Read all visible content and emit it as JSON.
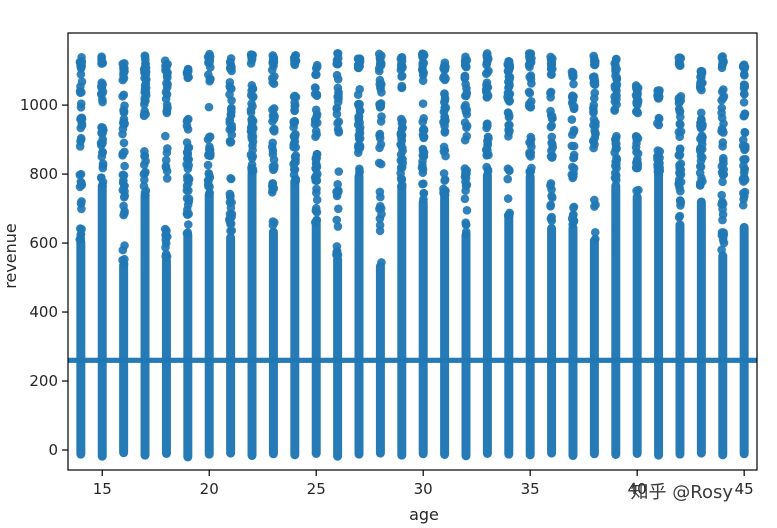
{
  "watermark": "知乎 @Rosy",
  "colors": {
    "dot": "#1f77b4",
    "axis": "#000000",
    "tick_label": "#262626",
    "background": "#ffffff",
    "watermark": "#3a3a3a"
  },
  "chart_data": {
    "type": "scatter",
    "title": "",
    "xlabel": "age",
    "ylabel": "revenue",
    "xlim": [
      13.4,
      45.6
    ],
    "ylim": [
      -58,
      1209
    ],
    "xticks": [
      15,
      20,
      25,
      30,
      35,
      40,
      45
    ],
    "yticks": [
      0,
      200,
      400,
      600,
      800,
      1000
    ],
    "grid": false,
    "legend": false,
    "hline_y": 260,
    "description": "Dense vertical strips of overlapping scatter points at each integer age from 14 to 45; revenue values fill the range from slightly below 0 up to each column's maximum, with sparse gaps in the upper region; a solid horizontal band of points crosses the full width at revenue ≈ 260.",
    "columns": [
      {
        "age": 14,
        "y_min": -12,
        "y_max": 1140
      },
      {
        "age": 15,
        "y_min": -18,
        "y_max": 1150
      },
      {
        "age": 16,
        "y_min": -8,
        "y_max": 1125
      },
      {
        "age": 17,
        "y_min": -15,
        "y_max": 1145
      },
      {
        "age": 18,
        "y_min": -10,
        "y_max": 1130
      },
      {
        "age": 19,
        "y_min": -20,
        "y_max": 1105
      },
      {
        "age": 20,
        "y_min": -12,
        "y_max": 1150
      },
      {
        "age": 21,
        "y_min": -9,
        "y_max": 1140
      },
      {
        "age": 22,
        "y_min": -16,
        "y_max": 1150
      },
      {
        "age": 23,
        "y_min": -11,
        "y_max": 1150
      },
      {
        "age": 24,
        "y_min": -14,
        "y_max": 1145
      },
      {
        "age": 25,
        "y_min": -10,
        "y_max": 1120
      },
      {
        "age": 26,
        "y_min": -18,
        "y_max": 1150
      },
      {
        "age": 27,
        "y_min": -12,
        "y_max": 1135
      },
      {
        "age": 28,
        "y_min": -9,
        "y_max": 1150
      },
      {
        "age": 29,
        "y_min": -15,
        "y_max": 1140
      },
      {
        "age": 30,
        "y_min": -11,
        "y_max": 1150
      },
      {
        "age": 31,
        "y_min": -13,
        "y_max": 1125
      },
      {
        "age": 32,
        "y_min": -17,
        "y_max": 1145
      },
      {
        "age": 33,
        "y_min": -10,
        "y_max": 1150
      },
      {
        "age": 34,
        "y_min": -12,
        "y_max": 1130
      },
      {
        "age": 35,
        "y_min": -14,
        "y_max": 1150
      },
      {
        "age": 36,
        "y_min": -9,
        "y_max": 1140
      },
      {
        "age": 37,
        "y_min": -16,
        "y_max": 1110
      },
      {
        "age": 38,
        "y_min": -11,
        "y_max": 1150
      },
      {
        "age": 39,
        "y_min": -13,
        "y_max": 1135
      },
      {
        "age": 40,
        "y_min": -10,
        "y_max": 1060
      },
      {
        "age": 41,
        "y_min": -15,
        "y_max": 1050
      },
      {
        "age": 42,
        "y_min": -12,
        "y_max": 1140
      },
      {
        "age": 43,
        "y_min": -9,
        "y_max": 1100
      },
      {
        "age": 44,
        "y_min": -14,
        "y_max": 1150
      },
      {
        "age": 45,
        "y_min": -11,
        "y_max": 1120
      }
    ]
  }
}
